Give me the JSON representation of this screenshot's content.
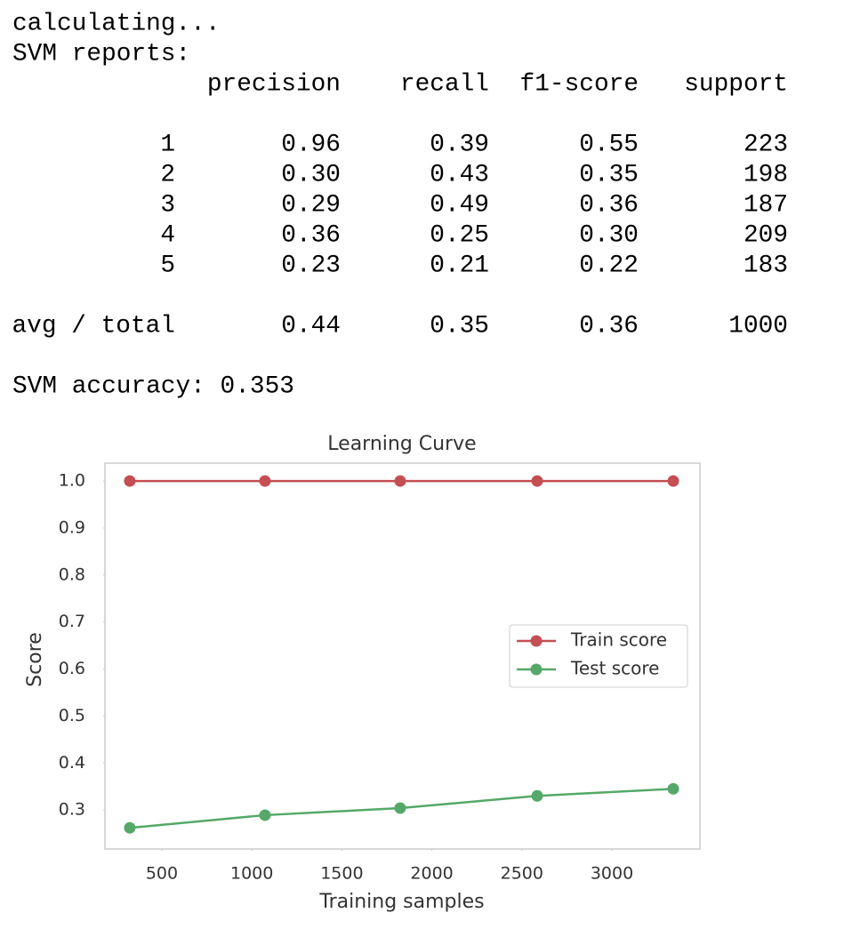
{
  "output": {
    "lines": [
      "calculating...",
      "SVM reports:"
    ],
    "table": {
      "header": [
        "precision",
        "recall",
        "f1-score",
        "support"
      ],
      "rows": [
        [
          "1",
          "0.96",
          "0.39",
          "0.55",
          "223"
        ],
        [
          "2",
          "0.30",
          "0.43",
          "0.35",
          "198"
        ],
        [
          "3",
          "0.29",
          "0.49",
          "0.36",
          "187"
        ],
        [
          "4",
          "0.36",
          "0.25",
          "0.30",
          "209"
        ],
        [
          "5",
          "0.23",
          "0.21",
          "0.22",
          "183"
        ]
      ],
      "total": [
        "avg / total",
        "0.44",
        "0.35",
        "0.36",
        "1000"
      ]
    },
    "accuracy": "SVM accuracy: 0.353"
  },
  "chart_data": {
    "type": "line",
    "title": "Learning Curve",
    "x_label": "Training samples",
    "y_label": "Score",
    "x": [
      322,
      1073,
      1824,
      2585,
      3341
    ],
    "series": [
      {
        "name": "Train score",
        "color": "#c44e52",
        "values": [
          1.0,
          1.0,
          1.0,
          1.0,
          1.0
        ]
      },
      {
        "name": "Test score",
        "color": "#55a868",
        "values": [
          0.262,
          0.289,
          0.304,
          0.33,
          0.345
        ]
      }
    ],
    "xlim": [
      184,
      3489
    ],
    "ylim": [
      0.217,
      1.038
    ],
    "xticks": [
      500,
      1000,
      1500,
      2000,
      2500,
      3000
    ],
    "yticks": [
      0.3,
      0.4,
      0.5,
      0.6,
      0.7,
      0.8,
      0.9,
      {
        "value": 1,
        "label": "1.0"
      }
    ],
    "grid": false,
    "legend": "center right"
  }
}
